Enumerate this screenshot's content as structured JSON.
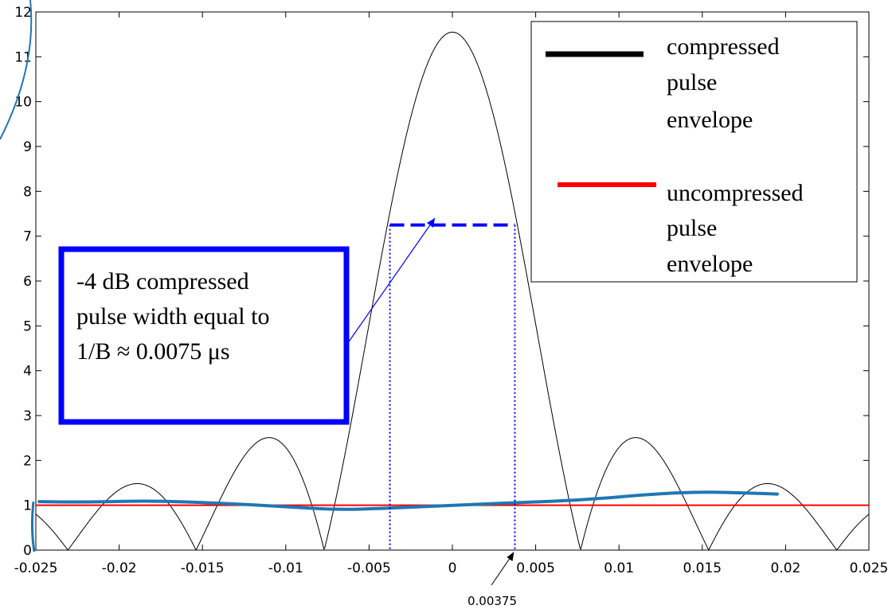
{
  "chart_data": {
    "type": "line",
    "xlim": [
      -0.025,
      0.025
    ],
    "ylim": [
      0,
      12
    ],
    "grid": false,
    "x_ticks": [
      -0.025,
      -0.02,
      -0.015,
      -0.01,
      -0.005,
      0,
      0.005,
      0.01,
      0.015,
      0.02,
      0.025
    ],
    "x_tick_labels": [
      "-0.025",
      "-0.02",
      "-0.015",
      "-0.01",
      "-0.005",
      "0",
      "0.005",
      "0.01",
      "0.015",
      "0.02",
      "0.025"
    ],
    "y_ticks": [
      0,
      1,
      2,
      3,
      4,
      5,
      6,
      7,
      8,
      9,
      10,
      11,
      12
    ],
    "y_tick_labels": [
      "0",
      "1",
      "2",
      "3",
      "4",
      "5",
      "6",
      "7",
      "8",
      "9",
      "10",
      "11",
      "12"
    ],
    "series": [
      {
        "name": "compressed pulse envelope",
        "color": "#000000",
        "function": "|sinc|",
        "peak": 11.55,
        "null_spacing": 0.0076923
      },
      {
        "name": "uncompressed pulse envelope",
        "color": "#ff0000",
        "x": [
          -0.025,
          0.025
        ],
        "y": [
          1.0,
          1.0
        ]
      },
      {
        "color": "#1f77b4",
        "x": [
          -0.0248,
          -0.022,
          -0.018,
          -0.014,
          -0.01,
          -0.007,
          -0.004,
          0,
          0.004,
          0.008,
          0.012,
          0.015,
          0.018,
          0.0195
        ],
        "y": [
          1.08,
          1.07,
          1.1,
          1.05,
          0.97,
          0.9,
          0.93,
          1.0,
          1.06,
          1.12,
          1.25,
          1.3,
          1.27,
          1.25
        ]
      }
    ],
    "annotations": {
      "legend_labels": [
        "compressed",
        "pulse",
        "envelope",
        "uncompressed",
        "pulse",
        "envelope"
      ],
      "legend_placement": "top-right",
      "text_box_lines": [
        "-4 dB compressed",
        "pulse width equal to",
        "1/B ≈ 0.0075 μs"
      ],
      "marker_label": "0.00375",
      "marker_x": 0.00375,
      "width_level": 7.25,
      "width_x": [
        -0.00375,
        0.00375
      ]
    },
    "colors": {
      "annotation_blue": "#0000ff",
      "hand_drawn_blue": "#1f77b4",
      "uncompressed_red": "#ff0000"
    }
  }
}
